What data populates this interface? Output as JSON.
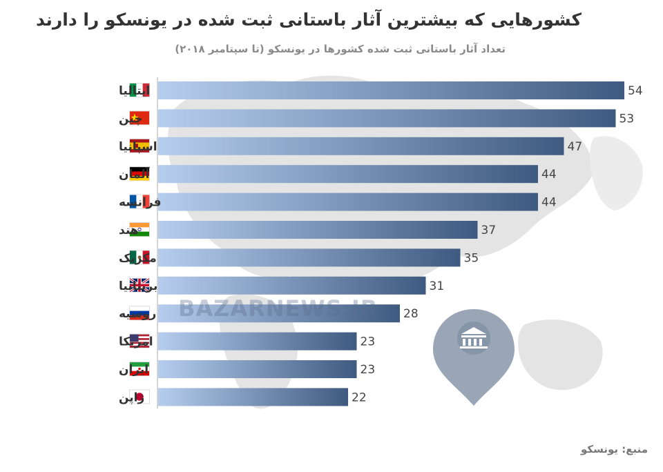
{
  "header": {
    "title": "کشورهایی که بیشترین آثار باستانی ثبت شده در یونسکو را دارند",
    "subtitle": "تعداد آثار باستانی ثبت شده کشورها در یونسکو (تا سپتامبر ۲۰۱۸)"
  },
  "footer": {
    "source": "منبع: یونسکو"
  },
  "watermark": "BAZARNEWS.IR",
  "colors": {
    "bar_start": "#b6cdee",
    "bar_end": "#3f5a80",
    "axis": "#aaaaaa",
    "map": "#e4e4e4",
    "pin": "#9aa6b6"
  },
  "icons": {
    "pin": "map-pin-icon",
    "logo": "unesco-temple-icon"
  },
  "chart_data": {
    "type": "bar",
    "orientation": "horizontal",
    "categories": [
      "ایتالیا",
      "چین",
      "اسپانیا",
      "آلمان",
      "فرانسه",
      "هند",
      "مکزیک",
      "بریتانیا",
      "روسیه",
      "امریکا",
      "ایران",
      "ژاپن"
    ],
    "flags": [
      "italy-flag-icon",
      "china-flag-icon",
      "spain-flag-icon",
      "germany-flag-icon",
      "france-flag-icon",
      "india-flag-icon",
      "mexico-flag-icon",
      "uk-flag-icon",
      "russia-flag-icon",
      "usa-flag-icon",
      "iran-flag-icon",
      "japan-flag-icon"
    ],
    "values": [
      54,
      53,
      47,
      44,
      44,
      37,
      35,
      31,
      28,
      23,
      23,
      22
    ],
    "value_labels": [
      "54",
      "53",
      "47",
      "44",
      "44",
      "37",
      "35",
      "31",
      "28",
      "23",
      "23",
      "22"
    ],
    "title": "کشورهایی که بیشترین آثار باستانی ثبت شده در یونسکو را دارند",
    "subtitle": "تعداد آثار باستانی ثبت شده کشورها در یونسکو (تا سپتامبر ۲۰۱۸)",
    "xlim": [
      0,
      54
    ],
    "grid": false,
    "legend": "none"
  }
}
